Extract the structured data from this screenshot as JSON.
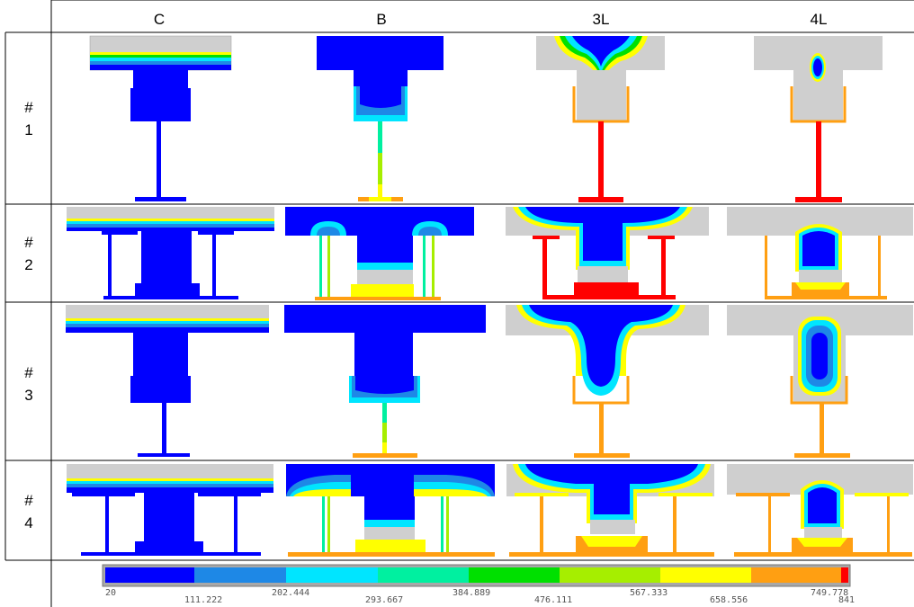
{
  "columns": [
    "C",
    "B",
    "3L",
    "4L"
  ],
  "rows": [
    {
      "label_hash": "#",
      "label_num": "1"
    },
    {
      "label_hash": "#",
      "label_num": "2"
    },
    {
      "label_hash": "#",
      "label_num": "3"
    },
    {
      "label_hash": "#",
      "label_num": "4"
    }
  ],
  "legend": {
    "ticks": [
      "20",
      "111.222",
      "202.444",
      "293.667",
      "384.889",
      "476.111",
      "567.333",
      "658.556",
      "749.778",
      "841"
    ],
    "colors": [
      "#0000ff",
      "#1e88e6",
      "#00e5ff",
      "#00f0a0",
      "#00e000",
      "#a6ee00",
      "#ffff00",
      "#ff9f12",
      "#ff0000"
    ]
  }
}
